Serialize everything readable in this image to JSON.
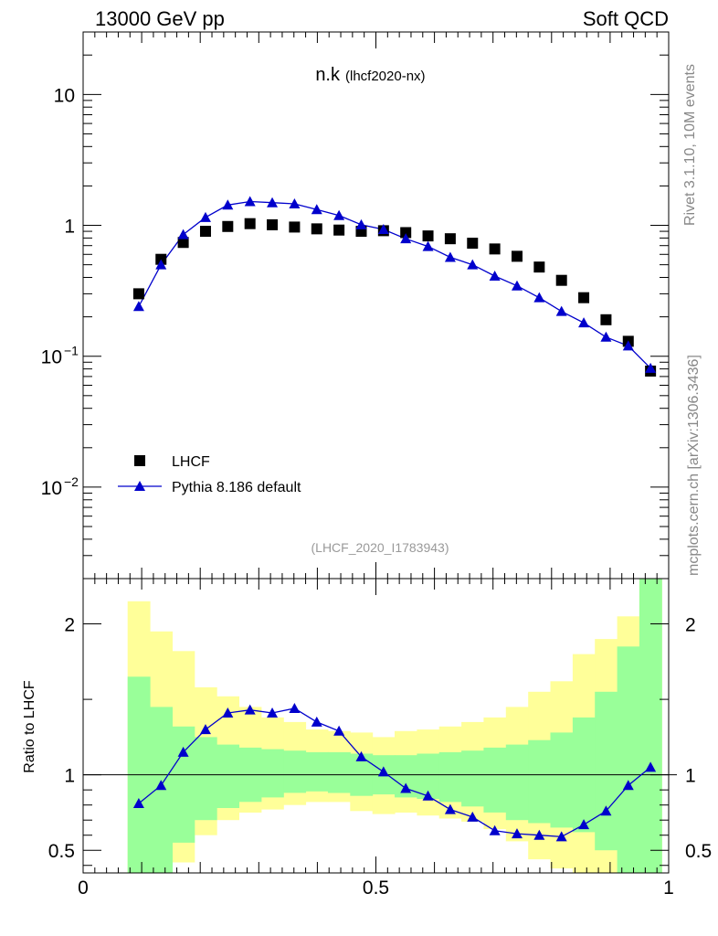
{
  "header": {
    "left": "13000 GeV pp",
    "right": "Soft QCD"
  },
  "side_labels": {
    "rivet": "Rivet 3.1.10,  10M events",
    "site": "mcplots.cern.ch [arXiv:1306.3436]"
  },
  "chart_data": [
    {
      "type": "scatter",
      "panel": "main",
      "title": "n.k",
      "subtitle": "(lhcf2020-nx)",
      "watermark": "(LHCF_2020_I1783943)",
      "yscale": "log",
      "ylim": [
        0.002,
        30
      ],
      "xlim": [
        0,
        1
      ],
      "yticks": [
        {
          "value": 10,
          "label": "10"
        },
        {
          "value": 1,
          "label": "1"
        },
        {
          "value": 0.1,
          "label": "10",
          "exp": "−1"
        },
        {
          "value": 0.01,
          "label": "10",
          "exp": "−2"
        }
      ],
      "legend": {
        "position": "bottom-left",
        "entries": [
          "LHCF",
          "Pythia 8.186 default"
        ]
      },
      "x": [
        0.095,
        0.133,
        0.171,
        0.209,
        0.247,
        0.285,
        0.323,
        0.361,
        0.399,
        0.437,
        0.475,
        0.513,
        0.551,
        0.589,
        0.627,
        0.665,
        0.703,
        0.741,
        0.779,
        0.817,
        0.855,
        0.893,
        0.931,
        0.969
      ],
      "series": [
        {
          "name": "LHCF",
          "marker": "square",
          "color": "#000000",
          "values": [
            0.3,
            0.55,
            0.74,
            0.9,
            0.98,
            1.03,
            1.01,
            0.97,
            0.94,
            0.92,
            0.9,
            0.91,
            0.88,
            0.83,
            0.79,
            0.73,
            0.66,
            0.58,
            0.48,
            0.38,
            0.28,
            0.19,
            0.13,
            0.077
          ]
        },
        {
          "name": "Pythia 8.186 default",
          "marker": "triangle",
          "color": "#0000cc",
          "values": [
            0.24,
            0.5,
            0.85,
            1.15,
            1.43,
            1.52,
            1.49,
            1.46,
            1.32,
            1.19,
            1.01,
            0.93,
            0.79,
            0.69,
            0.57,
            0.5,
            0.41,
            0.345,
            0.28,
            0.22,
            0.18,
            0.14,
            0.12,
            0.081
          ]
        }
      ]
    },
    {
      "type": "line",
      "panel": "ratio",
      "ylabel": "Ratio to LHCF",
      "xlabel": "",
      "ylim": [
        0.35,
        2.3
      ],
      "xlim": [
        0,
        1
      ],
      "xticks": [
        {
          "value": 0,
          "label": "0"
        },
        {
          "value": 0.5,
          "label": "0.5"
        },
        {
          "value": 1,
          "label": "1"
        }
      ],
      "yticks": [
        {
          "value": 2,
          "label": "2"
        },
        {
          "value": 1,
          "label": "1"
        },
        {
          "value": 0.5,
          "label": "0.5"
        }
      ],
      "band_edges": [
        0.076,
        0.114,
        0.152,
        0.19,
        0.228,
        0.266,
        0.304,
        0.342,
        0.38,
        0.418,
        0.456,
        0.494,
        0.532,
        0.57,
        0.608,
        0.646,
        0.684,
        0.722,
        0.76,
        0.798,
        0.836,
        0.874,
        0.912,
        0.95,
        0.988
      ],
      "bands": [
        {
          "name": "stat+syst outer",
          "color": "#ffff99",
          "lo": [
            0.25,
            0.4,
            0.42,
            0.6,
            0.7,
            0.75,
            0.77,
            0.8,
            0.82,
            0.82,
            0.76,
            0.74,
            0.75,
            0.73,
            0.71,
            0.69,
            0.64,
            0.56,
            0.44,
            0.38,
            0.3,
            0.25,
            0.22,
            0.2
          ],
          "hi": [
            2.15,
            1.95,
            1.82,
            1.58,
            1.52,
            1.45,
            1.38,
            1.35,
            1.3,
            1.29,
            1.28,
            1.25,
            1.29,
            1.3,
            1.32,
            1.35,
            1.38,
            1.45,
            1.55,
            1.62,
            1.8,
            1.9,
            2.05,
            2.3
          ]
        },
        {
          "name": "stat inner",
          "color": "#99ff99",
          "lo": [
            0.3,
            0.3,
            0.55,
            0.7,
            0.78,
            0.82,
            0.85,
            0.88,
            0.89,
            0.88,
            0.86,
            0.87,
            0.85,
            0.84,
            0.82,
            0.79,
            0.75,
            0.7,
            0.68,
            0.65,
            0.62,
            0.5,
            0.3,
            0.3
          ],
          "hi": [
            1.65,
            1.45,
            1.32,
            1.25,
            1.2,
            1.18,
            1.17,
            1.16,
            1.15,
            1.15,
            1.14,
            1.13,
            1.13,
            1.14,
            1.15,
            1.16,
            1.18,
            1.2,
            1.23,
            1.28,
            1.38,
            1.55,
            1.85,
            2.3
          ]
        }
      ],
      "series": [
        {
          "name": "Pythia 8.186 default / LHCF",
          "marker": "triangle",
          "color": "#0000cc",
          "x": [
            0.095,
            0.133,
            0.171,
            0.209,
            0.247,
            0.285,
            0.323,
            0.361,
            0.399,
            0.437,
            0.475,
            0.513,
            0.551,
            0.589,
            0.627,
            0.665,
            0.703,
            0.741,
            0.779,
            0.817,
            0.855,
            0.893,
            0.931,
            0.969
          ],
          "values": [
            0.81,
            0.93,
            1.15,
            1.3,
            1.41,
            1.43,
            1.41,
            1.44,
            1.35,
            1.29,
            1.12,
            1.02,
            0.91,
            0.86,
            0.77,
            0.72,
            0.63,
            0.61,
            0.6,
            0.59,
            0.67,
            0.76,
            0.93,
            1.05
          ]
        }
      ]
    }
  ]
}
